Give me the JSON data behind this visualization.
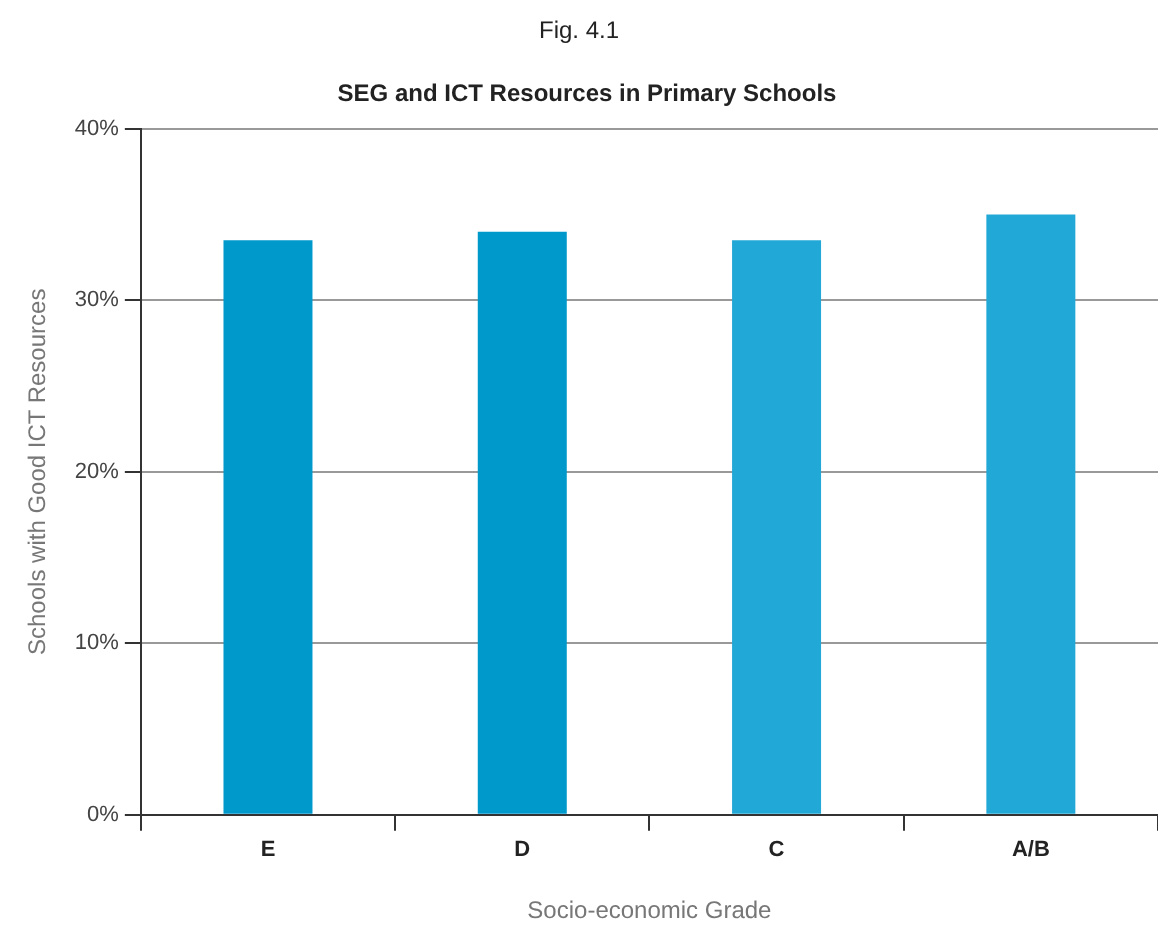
{
  "chart_data": {
    "type": "bar",
    "title": "SEG and ICT Resources in Primary Schools",
    "annotations": [
      "Fig. 4.1"
    ],
    "xlabel": "Socio-economic Grade",
    "ylabel": "Schools with Good ICT Resources",
    "categories": [
      "E",
      "D",
      "C",
      "A/B"
    ],
    "values": [
      33.5,
      34,
      33.5,
      35
    ],
    "colors": [
      "#0099cc",
      "#0099cc",
      "#22a8d6",
      "#22a8d6"
    ],
    "ylim": [
      0,
      40
    ],
    "yticks": [
      {
        "value": 0,
        "label": "0%"
      },
      {
        "value": 10,
        "label": "10%"
      },
      {
        "value": 20,
        "label": "20%"
      },
      {
        "value": 30,
        "label": "30%"
      },
      {
        "value": 40,
        "label": "40%"
      }
    ],
    "grid": "y"
  }
}
